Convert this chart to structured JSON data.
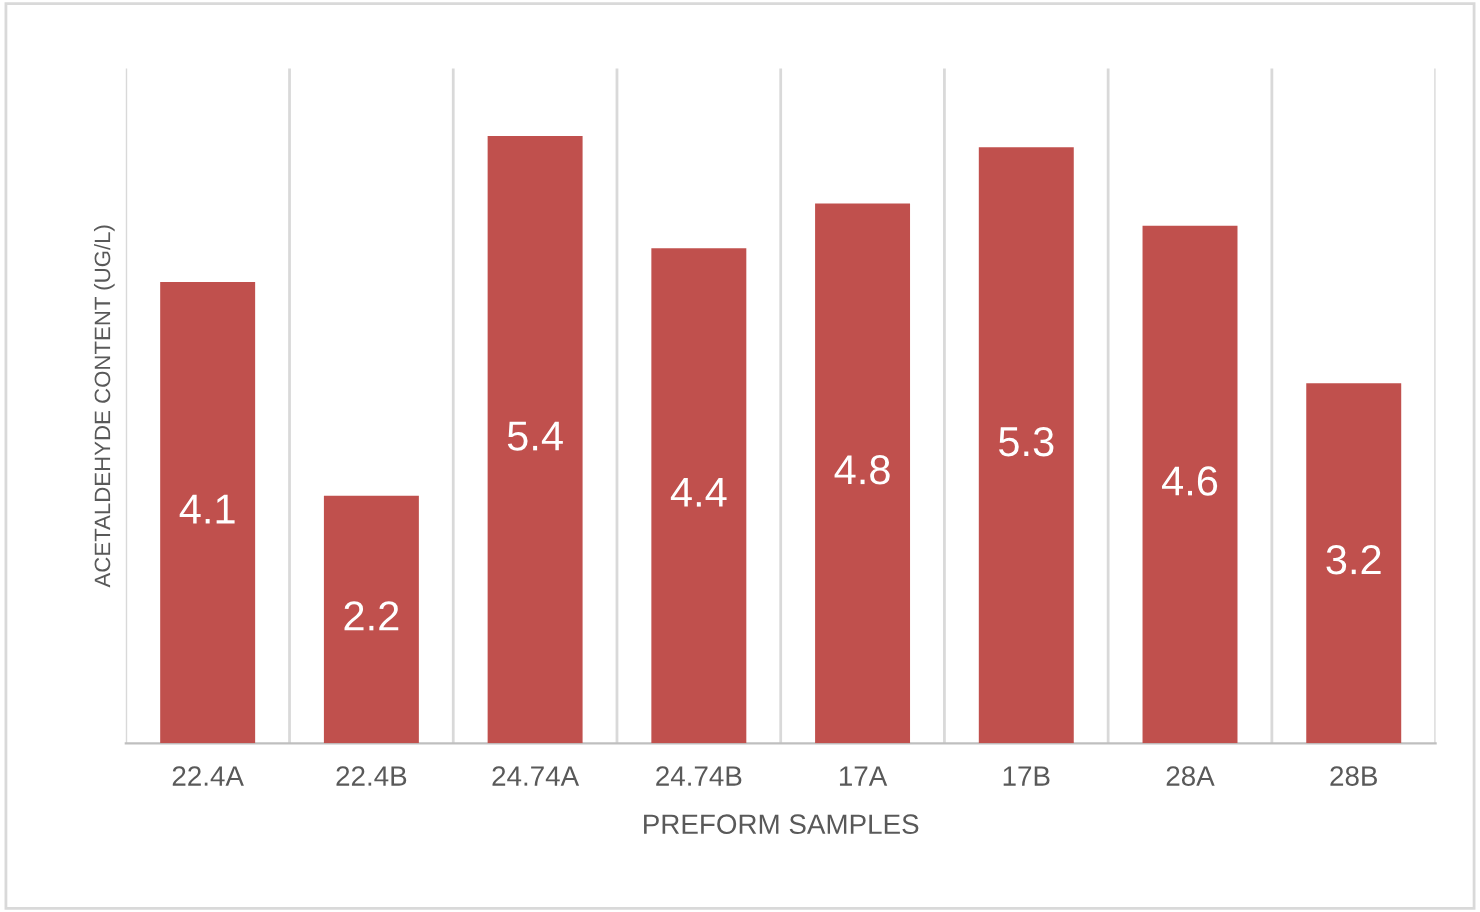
{
  "chart_data": {
    "type": "bar",
    "xlabel": "PREFORM SAMPLES",
    "ylabel": "ACETALDEHYDE CONTENT (UG/L)",
    "categories": [
      "22.4A",
      "22.4B",
      "24.74A",
      "24.74B",
      "17A",
      "17B",
      "28A",
      "28B"
    ],
    "values": [
      4.1,
      2.2,
      5.4,
      4.4,
      4.8,
      5.3,
      4.6,
      3.2
    ],
    "color": "#c0504d",
    "data_labels": true,
    "grid": "x",
    "legend": false
  }
}
